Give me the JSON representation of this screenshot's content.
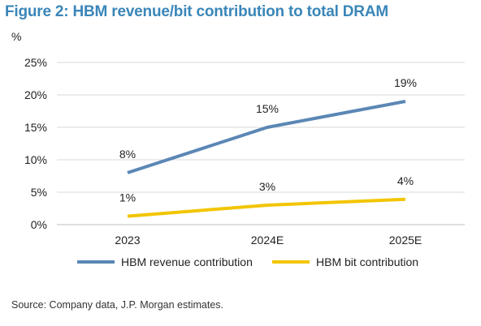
{
  "figure": {
    "title": "Figure 2: HBM revenue/bit contribution to total DRAM",
    "unit": "%",
    "source": "Source: Company data, J.P. Morgan estimates."
  },
  "chart_data": {
    "type": "line",
    "title": "Figure 2: HBM revenue/bit contribution to total DRAM",
    "categories": [
      "2023",
      "2024E",
      "2025E"
    ],
    "ylim": [
      0,
      25
    ],
    "yticks": [
      0,
      5,
      10,
      15,
      20,
      25
    ],
    "ytick_labels": [
      "0%",
      "5%",
      "10%",
      "15%",
      "20%",
      "25%"
    ],
    "grid": true,
    "legend_position": "bottom",
    "series": [
      {
        "name": "HBM revenue contribution",
        "values": [
          8,
          15,
          19
        ],
        "labels": [
          "8%",
          "15%",
          "19%"
        ],
        "color": "#5b87b5"
      },
      {
        "name": "HBM bit contribution",
        "values": [
          1.3,
          3,
          3.9
        ],
        "labels": [
          "1%",
          "3%",
          "4%"
        ],
        "color": "#f2c500"
      }
    ]
  }
}
